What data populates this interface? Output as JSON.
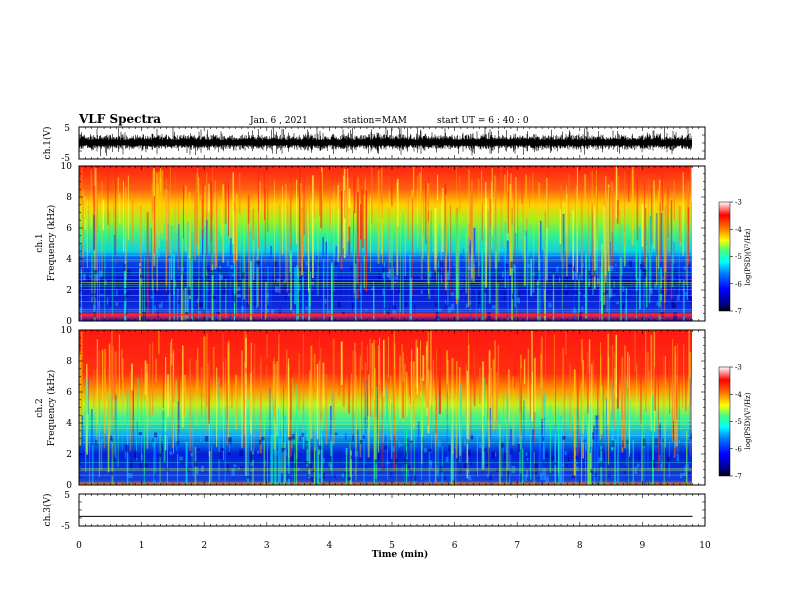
{
  "header": {
    "title": "VLF Spectra",
    "date": "Jan. 6 , 2021",
    "station": "station=MAM",
    "start": "start UT =  6 : 40 : 0"
  },
  "chart_data": [
    {
      "type": "line",
      "panel": "ch1-waveform",
      "ylabel": "ch.1(V)",
      "ylim": [
        -5,
        5
      ],
      "yticks": [
        "5",
        "-5"
      ],
      "xlim": [
        0,
        10
      ]
    },
    {
      "type": "heatmap",
      "panel": "ch1-spectrogram",
      "ylabel": "ch.1 Frequency (kHz)",
      "ylabel_lines": [
        "ch.1",
        "Frequency (kHz)"
      ],
      "ylim": [
        0,
        10
      ],
      "yticks": [
        "0",
        "2",
        "4",
        "6",
        "8",
        "10"
      ],
      "xlim": [
        0,
        10
      ],
      "colorbar": {
        "label": "log(PSD)(V²/Hz)",
        "range": [
          -7,
          -3
        ],
        "ticks": [
          "-3",
          "-4",
          "-5",
          "-6",
          "-7"
        ]
      }
    },
    {
      "type": "heatmap",
      "panel": "ch2-spectrogram",
      "ylabel": "ch.2 Frequency (kHz)",
      "ylabel_lines": [
        "ch.2",
        "Frequency (kHz)"
      ],
      "ylim": [
        0,
        10
      ],
      "yticks": [
        "0",
        "2",
        "4",
        "6",
        "8",
        "10"
      ],
      "xlim": [
        0,
        10
      ],
      "colorbar": {
        "label": "log(PSD)(V²/Hz)",
        "range": [
          -7,
          -3
        ],
        "ticks": [
          "-3",
          "-4",
          "-5",
          "-6",
          "-7"
        ]
      }
    },
    {
      "type": "line",
      "panel": "ch3-waveform",
      "ylabel": "ch.3(V)",
      "ylim": [
        -5,
        5
      ],
      "yticks": [
        "5",
        "-5"
      ],
      "xlim": [
        0,
        10
      ],
      "series": [
        {
          "x": [
            0,
            9.8
          ],
          "y": [
            -2,
            -2
          ]
        }
      ]
    }
  ],
  "xaxis": {
    "label": "Time (min)",
    "ticks": [
      0,
      1,
      2,
      3,
      4,
      5,
      6,
      7,
      8,
      9,
      10
    ],
    "tick_labels": [
      "0",
      "1",
      "2",
      "3",
      "4",
      "5",
      "6",
      "7",
      "8",
      "9",
      "10"
    ],
    "data_end": 9.8
  },
  "colormap": [
    "#000080",
    "#0000ff",
    "#0080ff",
    "#00ffff",
    "#40ff80",
    "#ffff00",
    "#ff8000",
    "#ff0000",
    "#ffffff"
  ]
}
